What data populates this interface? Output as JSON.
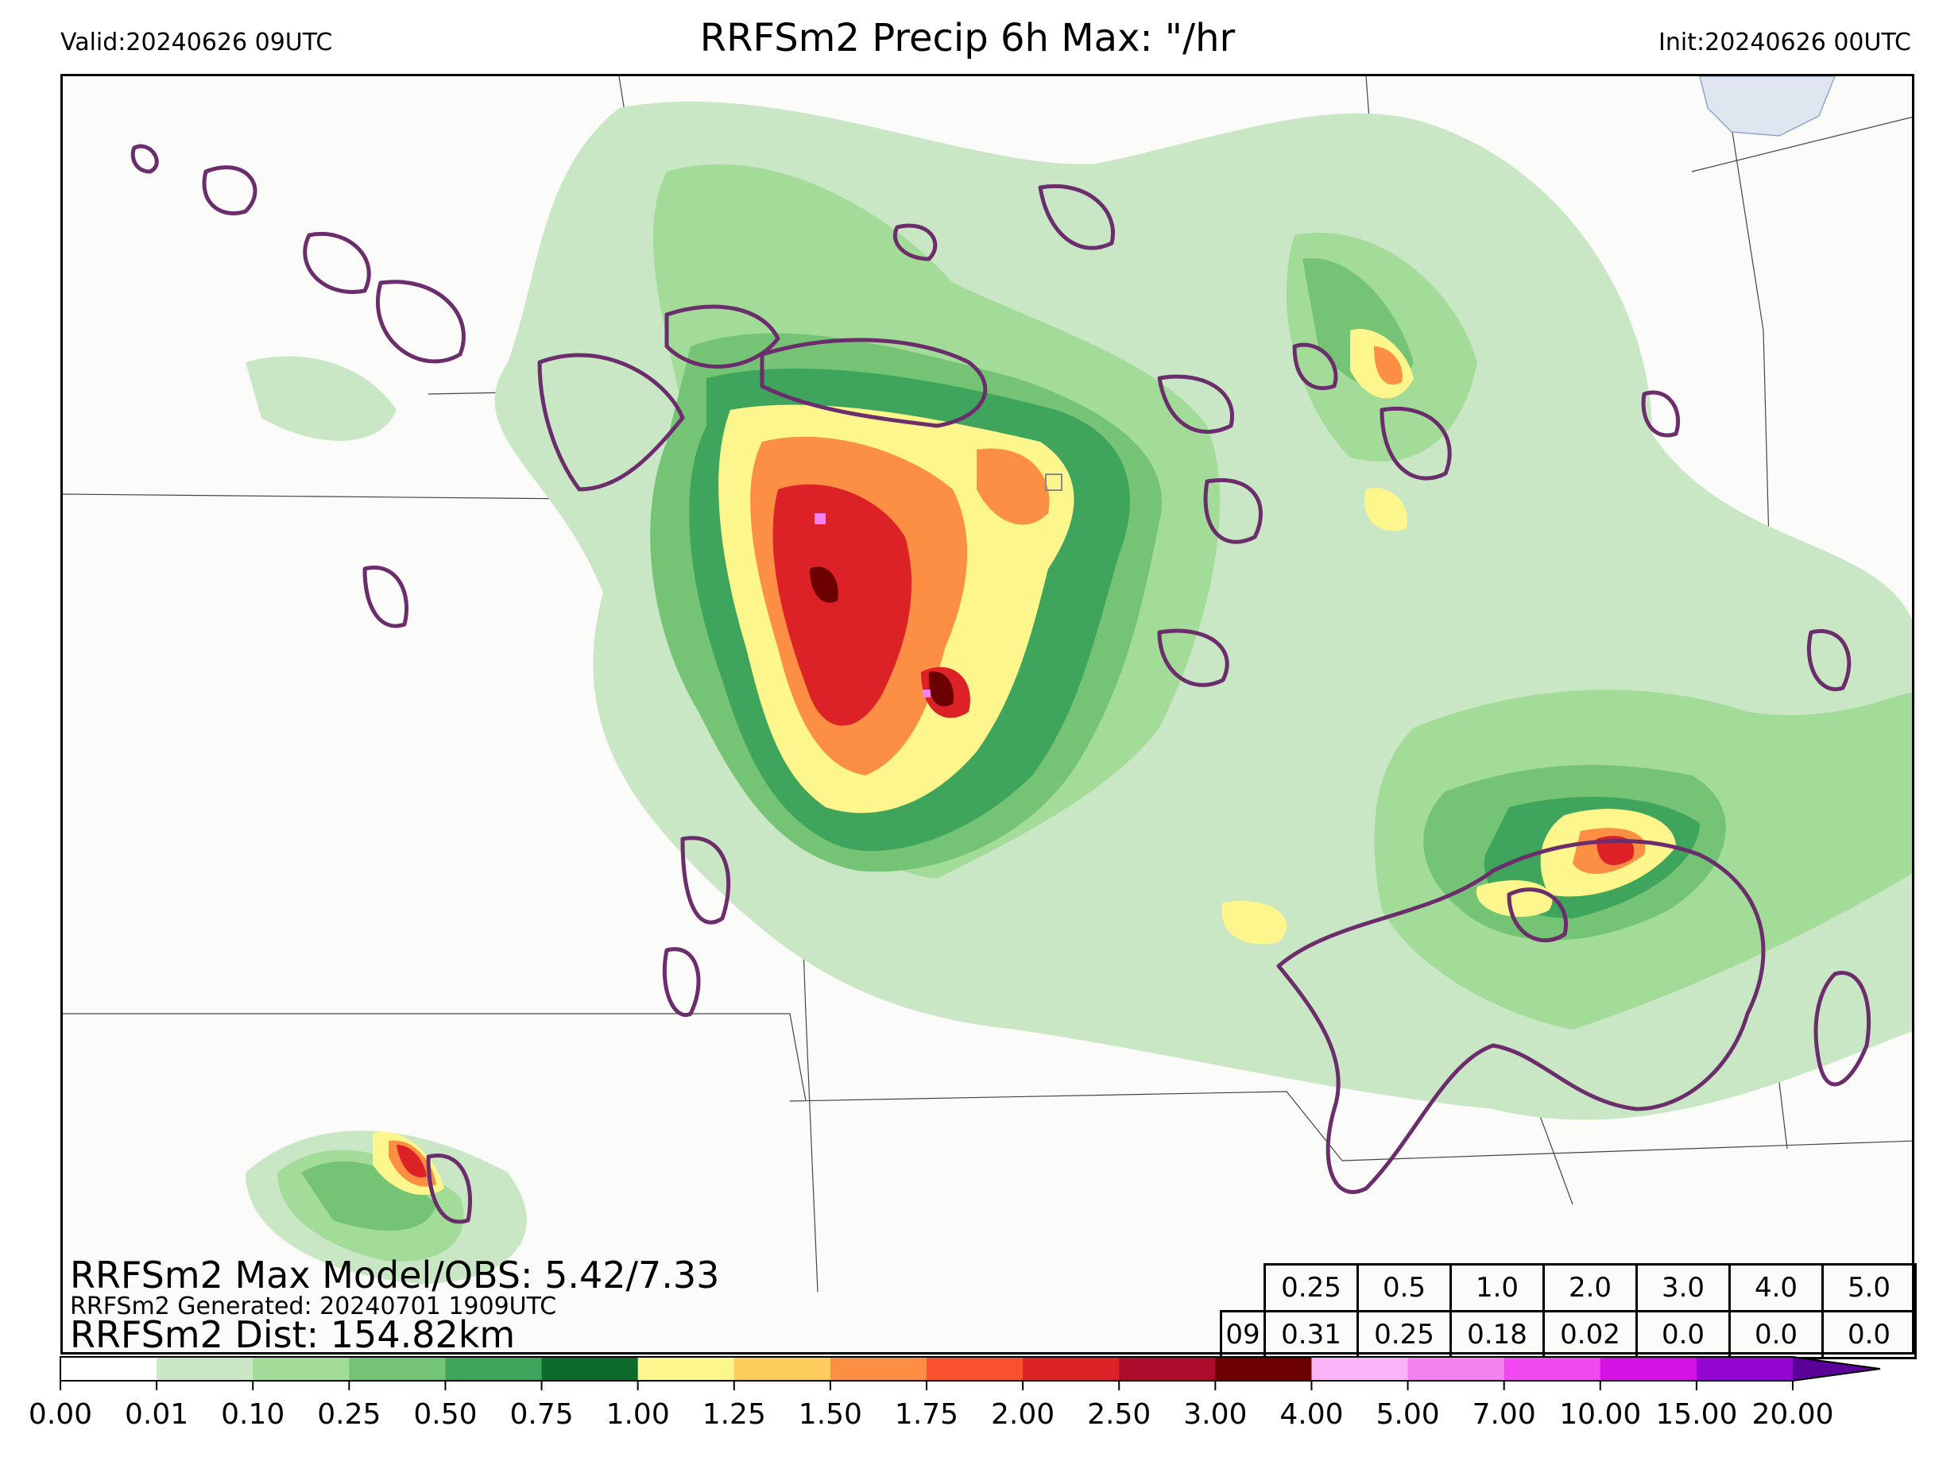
{
  "header": {
    "valid": "Valid:20240626 09UTC",
    "title": "RRFSm2 Precip 6h Max: \"/hr",
    "init": "Init:20240626 00UTC"
  },
  "stats": {
    "max_line": "RRFSm2 Max Model/OBS: 5.42/7.33",
    "generated_line": "RRFSm2 Generated: 20240701 1909UTC",
    "dist_line": "RRFSm2 Dist: 154.82km"
  },
  "score_table": {
    "thresholds": [
      "0.25",
      "0.5",
      "1.0",
      "2.0",
      "3.0",
      "4.0",
      "5.0"
    ],
    "row_label": "09",
    "values": [
      "0.31",
      "0.25",
      "0.18",
      "0.02",
      "0.0",
      "0.0",
      "0.0"
    ]
  },
  "colorbar": {
    "ticks": [
      "0.00",
      "0.01",
      "0.10",
      "0.25",
      "0.50",
      "0.75",
      "1.00",
      "1.25",
      "1.50",
      "1.75",
      "2.00",
      "2.50",
      "3.00",
      "4.00",
      "5.00",
      "7.00",
      "10.00",
      "15.00",
      "20.00"
    ],
    "colors": [
      "#ffffff",
      "#c9e7c4",
      "#a2dc98",
      "#75c476",
      "#3fa55c",
      "#0b6a2c",
      "#fdf68c",
      "#fdcd5e",
      "#fc8f44",
      "#f9502f",
      "#dc2127",
      "#ad0d2c",
      "#6c0000",
      "#f9b3f7",
      "#f381f0",
      "#f049ef",
      "#d512e3",
      "#9406d2"
    ],
    "extend_color": "#5b0099"
  },
  "map_colors": {
    "light_green": "#c9e7c4",
    "green": "#a2dc98",
    "mid_green": "#75c476",
    "dark_green": "#3fa55c",
    "darkest_green": "#0b6a2c",
    "yellow": "#fdf68c",
    "orange": "#fc8f44",
    "red": "#dc2127",
    "dark_red": "#6c0000",
    "obs_contour": "#6b2d6b",
    "lake": "#dfe6f0"
  }
}
